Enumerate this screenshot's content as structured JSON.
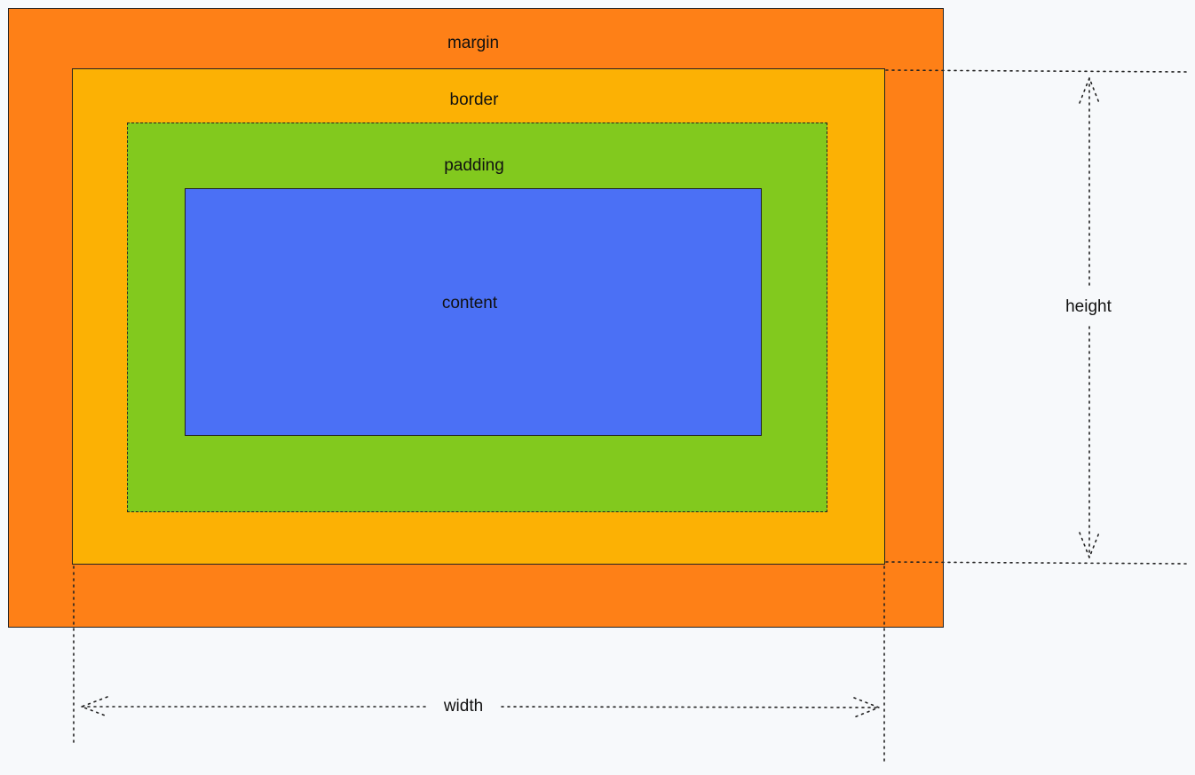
{
  "diagram": {
    "colors": {
      "background": "#f7f9fb",
      "margin": "#fe8017",
      "border": "#fcb104",
      "padding": "#82c91e",
      "content": "#4b70f5",
      "outline": "#222222",
      "text": "#111111"
    },
    "labels": {
      "margin": "margin",
      "border": "border",
      "padding": "padding",
      "content": "content",
      "height": "height",
      "width": "width"
    }
  }
}
